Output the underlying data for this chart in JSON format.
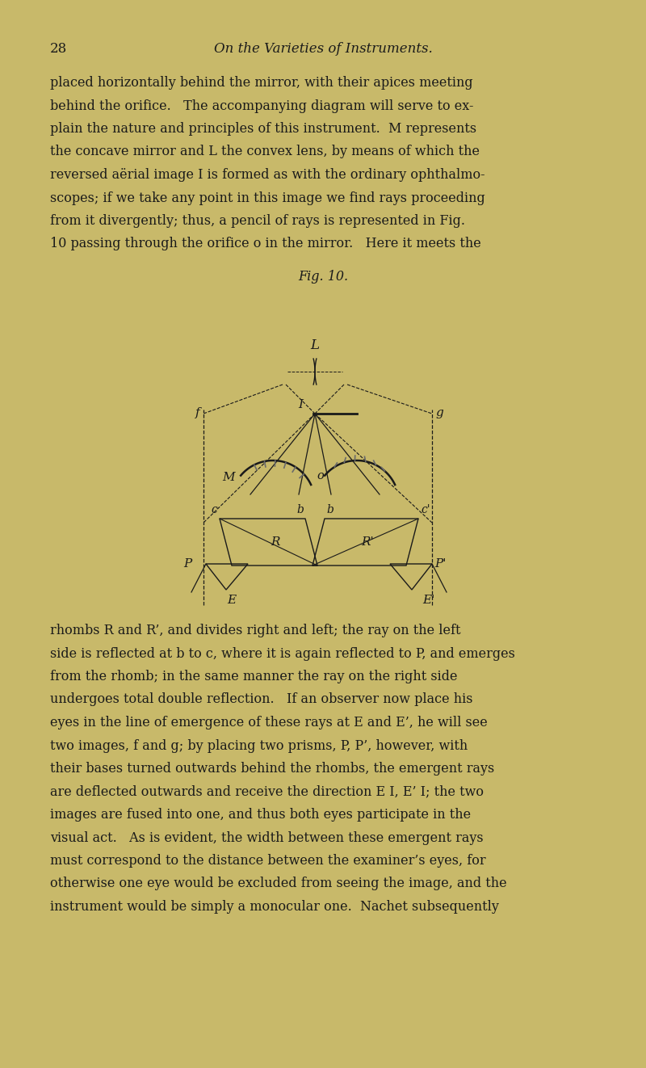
{
  "bg_color": "#C8B96A",
  "text_color": "#1a1a1a",
  "line_color": "#1a1a1a",
  "page_number": "28",
  "header_title": "On the Varieties of Instruments.",
  "para1_lines": [
    "placed horizontally behind the mirror, with their apices meeting",
    "behind the orifice.   The accompanying diagram will serve to ex-",
    "plain the nature and principles of this instrument.  M represents",
    "the concave mirror and L the convex lens, by means of which the",
    "reversed aërial image I is formed as with the ordinary ophthalmo-",
    "scopes; if we take any point in this image we find rays proceeding",
    "from it divergently; thus, a pencil of rays is represented in Fig.",
    "10 passing through the orifice o in the mirror.   Here it meets the"
  ],
  "fig_caption": "Fig. 10.",
  "para2_lines": [
    "rhombs R and R’, and divides right and left; the ray on the left",
    "side is reflected at b to c, where it is again reflected to P, and emerges",
    "from the rhomb; in the same manner the ray on the right side",
    "undergoes total double reflection.   If an observer now place his",
    "eyes in the line of emergence of these rays at E and E’, he will see",
    "two images, f and g; by placing two prisms, P, P’, however, with",
    "their bases turned outwards behind the rhombs, the emergent rays",
    "are deflected outwards and receive the direction E I, E’ I; the two",
    "images are fused into one, and thus both eyes participate in the",
    "visual act.   As is evident, the width between these emergent rays",
    "must correspond to the distance between the examiner’s eyes, for",
    "otherwise one eye would be excluded from seeing the image, and the",
    "instrument would be simply a monocular one.  Nachet subsequently"
  ]
}
